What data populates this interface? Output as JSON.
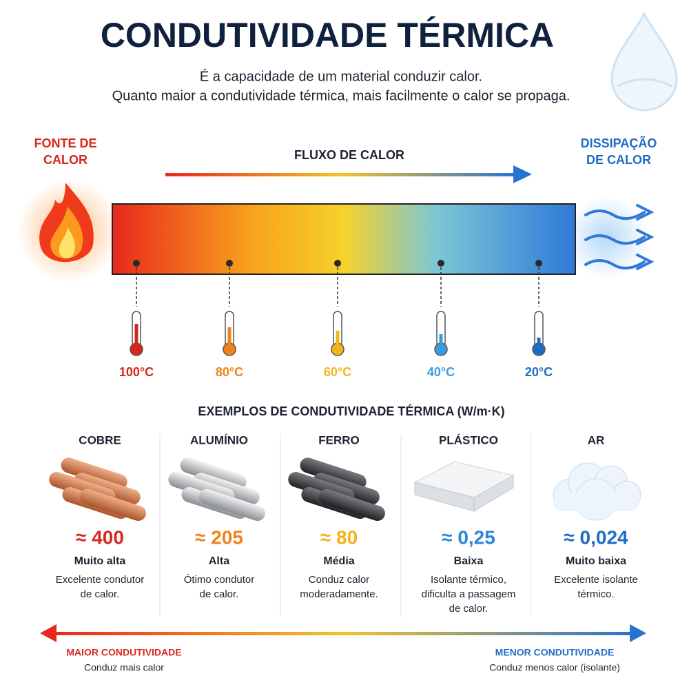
{
  "header": {
    "title": "CONDUTIVIDADE TÉRMICA",
    "subtitle_lines": [
      "É a capacidade de um material conduzir calor.",
      "Quanto maior a condutividade térmica, mais facilmente o calor se propaga."
    ]
  },
  "flow": {
    "source_lines": [
      "FONTE DE",
      "CALOR"
    ],
    "label": "FLUXO DE CALOR",
    "sink_lines": [
      "DISSIPAÇÃO",
      "DE CALOR"
    ],
    "temperatures": [
      {
        "label": "100°C",
        "color": "#d9261c"
      },
      {
        "label": "80°C",
        "color": "#f0821a"
      },
      {
        "label": "60°C",
        "color": "#f2b51c"
      },
      {
        "label": "40°C",
        "color": "#3a9ce0"
      },
      {
        "label": "20°C",
        "color": "#1f6cc4"
      }
    ]
  },
  "examples": {
    "title": "EXEMPLOS DE CONDUTIVIDADE TÉRMICA (W/m·K)",
    "materials": [
      {
        "name": "COBRE",
        "value": "≈ 400",
        "level": "Muito alta",
        "description_lines": [
          "Excelente condutor",
          "de calor."
        ],
        "color": "#d9261c"
      },
      {
        "name": "ALUMÍNIO",
        "value": "≈ 205",
        "level": "Alta",
        "description_lines": [
          "Ótimo condutor",
          "de calor."
        ],
        "color": "#f0821a"
      },
      {
        "name": "FERRO",
        "value": "≈ 80",
        "level": "Média",
        "description_lines": [
          "Conduz calor",
          "moderadamente."
        ],
        "color": "#f2b51c"
      },
      {
        "name": "PLÁSTICO",
        "value": "≈ 0,25",
        "level": "Baixa",
        "description_lines": [
          "Isolante térmico,",
          "dificulta a passagem",
          "de calor."
        ],
        "color": "#2a86d6"
      },
      {
        "name": "AR",
        "value": "≈ 0,024",
        "level": "Muito baixa",
        "description_lines": [
          "Excelente isolante",
          "térmico."
        ],
        "color": "#1f6cc4"
      }
    ]
  },
  "scale": {
    "left_title": "MAIOR CONDUTIVIDADE",
    "left_note": "Conduz mais calor",
    "right_title": "MENOR CONDUTIVIDADE",
    "right_note": "Conduz menos calor (isolante)"
  }
}
